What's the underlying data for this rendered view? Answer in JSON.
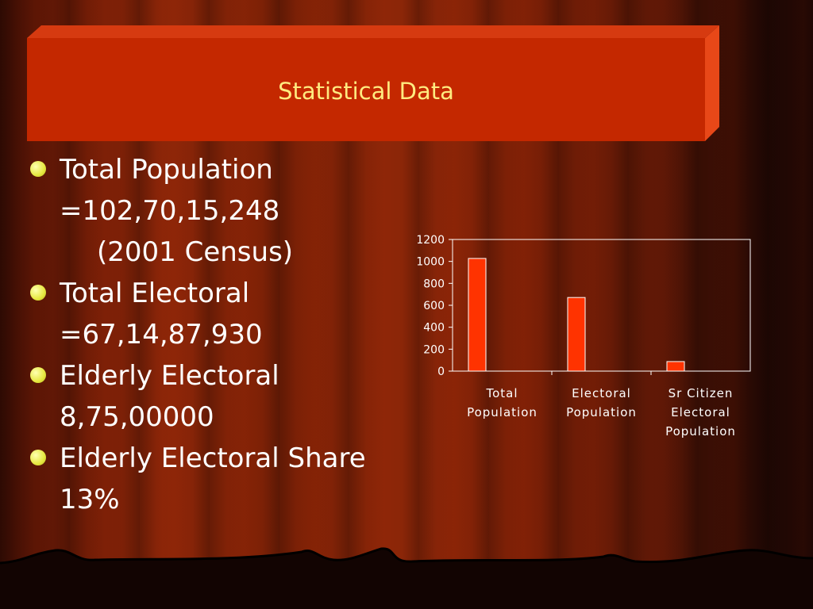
{
  "slide": {
    "title": "Statistical Data",
    "bullets": [
      {
        "line1": "Total Population",
        "line2": "=102,70,15,248"
      },
      {
        "line1": "Total Electoral",
        "line2": "=67,14,87,930"
      },
      {
        "line1": "Elderly Electoral",
        "line2": "8,75,00000"
      },
      {
        "line1": "Elderly Electoral Share",
        "line2": "13%"
      }
    ],
    "census_note": "(2001 Census)"
  },
  "colors": {
    "title_bg": "#c42800",
    "title_text": "#ffeb80",
    "bar": "#ff3300",
    "bullet_dot": "#e6e840"
  },
  "chart_data": {
    "type": "bar",
    "categories": [
      [
        "Total",
        "Population"
      ],
      [
        "Electoral",
        "Population"
      ],
      [
        "Sr Citizen",
        "Electoral",
        "Population"
      ]
    ],
    "values": [
      1027,
      671,
      87
    ],
    "ylim": [
      0,
      1200
    ],
    "yticks": [
      "0",
      "200",
      "400",
      "600",
      "800",
      "1000",
      "1200"
    ],
    "title": "",
    "xlabel": "",
    "ylabel": "",
    "grid": false,
    "legend": "none"
  }
}
